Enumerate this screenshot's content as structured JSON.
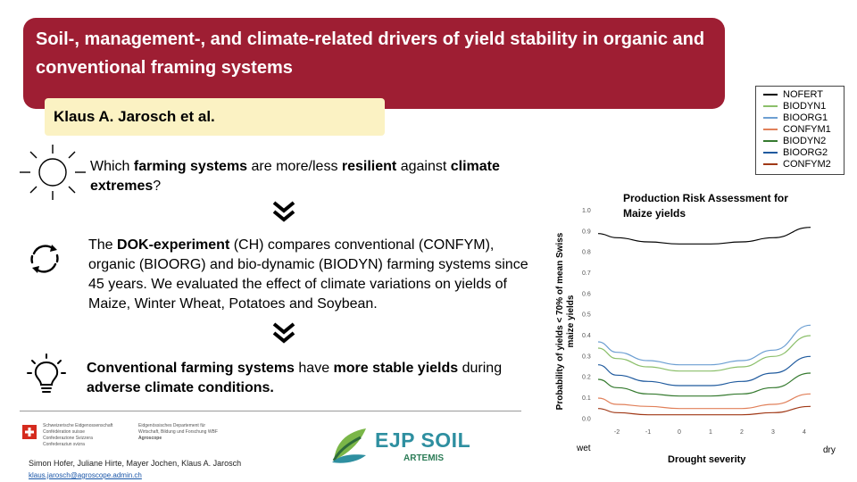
{
  "header": {
    "title": "Soil-, management-, and climate-related drivers of yield stability in organic and conventional framing systems",
    "authors": "Klaus A. Jarosch et al."
  },
  "sections": [
    {
      "icon": "sun-icon",
      "parts": [
        {
          "t": "Which ",
          "b": false
        },
        {
          "t": "farming systems",
          "b": true
        },
        {
          "t": " are more/less ",
          "b": false
        },
        {
          "t": "resilient",
          "b": true
        },
        {
          "t": " against ",
          "b": false
        },
        {
          "t": "climate extremes",
          "b": true
        },
        {
          "t": "?",
          "b": false
        }
      ]
    },
    {
      "icon": "cycle-arrows-icon",
      "parts": [
        {
          "t": "The ",
          "b": false
        },
        {
          "t": "DOK-experiment",
          "b": true
        },
        {
          "t": " (CH) compares conventional (CONFYM), organic (BIOORG) and bio-dynamic (BIODYN) farming systems since 45 years. We evaluated the effect of climate variations on yields of Maize, Winter Wheat, Potatoes and Soybean.",
          "b": false
        }
      ]
    },
    {
      "icon": "lightbulb-icon",
      "parts": [
        {
          "t": "Conventional farming systems",
          "b": true
        },
        {
          "t": " have ",
          "b": false
        },
        {
          "t": "more stable yields",
          "b": true
        },
        {
          "t": " during ",
          "b": false
        },
        {
          "t": "adverse climate conditions.",
          "b": true
        }
      ]
    }
  ],
  "footer": {
    "names": "Simon Hofer, Juliane Hirte, Mayer Jochen, Klaus A. Jarosch",
    "email": "klaus.jarosch@agroscope.admin.ch",
    "fed_left": [
      "Schweizerische Eidgenossenschaft",
      "Confédération suisse",
      "Confederazione Svizzera",
      "Confederaziun svizra"
    ],
    "fed_right": [
      "Eidgenössisches Departement für",
      "Wirtschaft, Bildung und Forschung WBF",
      "Agroscope"
    ],
    "logo_main": "EJP SOIL",
    "logo_sub": "ARTEMIS"
  },
  "colors": {
    "banner": "#9e1e33",
    "author_box": "#fbf2c3",
    "logo_teal": "#2e8fa0",
    "logo_green": "#2c7c57"
  },
  "chart_data": {
    "type": "line",
    "title": "Production Risk Assessment for Maize yields",
    "xlabel": "Drought severity",
    "ylabel": "Probability of yields < 70% of mean Swiss maize yields",
    "x_end_labels": {
      "left": "wet",
      "right": "dry"
    },
    "x_ticks": [
      -2,
      -1,
      0,
      1,
      2,
      3,
      4
    ],
    "y_ticks": [
      0.0,
      0.1,
      0.2,
      0.3,
      0.4,
      0.5,
      0.6,
      0.7,
      0.8,
      0.9,
      1.0
    ],
    "xlim": [
      -2.6,
      4.2
    ],
    "ylim": [
      -0.02,
      1.0
    ],
    "x": [
      -2.6,
      -2,
      -1,
      0,
      1,
      2,
      3,
      4.2
    ],
    "legend_position": "top-right",
    "series": [
      {
        "name": "NOFERT",
        "color": "#000000",
        "values": [
          0.89,
          0.87,
          0.85,
          0.84,
          0.84,
          0.85,
          0.87,
          0.92
        ]
      },
      {
        "name": "BIODYN1",
        "color": "#8bbf6a",
        "values": [
          0.34,
          0.29,
          0.25,
          0.23,
          0.23,
          0.25,
          0.3,
          0.4
        ]
      },
      {
        "name": "BIOORG1",
        "color": "#6d9fd2",
        "values": [
          0.37,
          0.32,
          0.28,
          0.26,
          0.26,
          0.28,
          0.33,
          0.45
        ]
      },
      {
        "name": "CONFYM1",
        "color": "#e1805a",
        "values": [
          0.1,
          0.07,
          0.06,
          0.05,
          0.05,
          0.05,
          0.07,
          0.12
        ]
      },
      {
        "name": "BIODYN2",
        "color": "#357a2f",
        "values": [
          0.19,
          0.15,
          0.12,
          0.11,
          0.11,
          0.12,
          0.15,
          0.22
        ]
      },
      {
        "name": "BIOORG2",
        "color": "#1f5a9e",
        "values": [
          0.26,
          0.21,
          0.18,
          0.16,
          0.16,
          0.18,
          0.22,
          0.3
        ]
      },
      {
        "name": "CONFYM2",
        "color": "#a03816",
        "values": [
          0.05,
          0.03,
          0.02,
          0.02,
          0.02,
          0.02,
          0.03,
          0.06
        ]
      }
    ]
  }
}
